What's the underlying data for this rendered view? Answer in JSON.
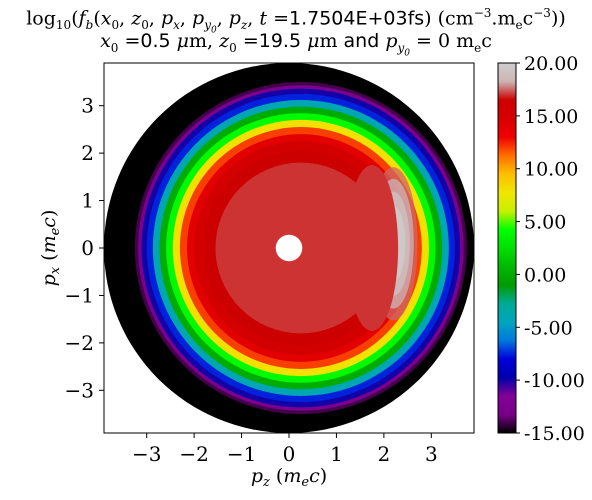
{
  "chart_data": {
    "type": "heatmap",
    "title_line1": "log10(fb(x0, z0, px, py0, pz, t =1.7504E+03fs) (cm−3.mec−3))",
    "title_line2": "x0 =0.5 μm, z0 =19.5 μm and py0 = 0 mec",
    "xlabel": "pz (mec)",
    "ylabel": "px (mec)",
    "xlim": [
      -3.9,
      3.9
    ],
    "ylim": [
      -3.9,
      3.9
    ],
    "x_ticks": [
      -3,
      -2,
      -1,
      0,
      1,
      2,
      3
    ],
    "y_ticks": [
      -3,
      -2,
      -1,
      0,
      1,
      2,
      3
    ],
    "x_tick_labels": [
      "−3",
      "−2",
      "−1",
      "0",
      "1",
      "2",
      "3"
    ],
    "y_tick_labels": [
      "−3",
      "−2",
      "−1",
      "0",
      "1",
      "2",
      "3"
    ],
    "colorbar": {
      "min": -15.0,
      "max": 20.0,
      "ticks": [
        20,
        15,
        10,
        5,
        0,
        -5,
        -10,
        -15
      ],
      "tick_labels": [
        "20.00",
        "15.00",
        "10.00",
        "5.00",
        "0.00",
        "-5.00",
        "-10.00",
        "-15.00"
      ],
      "colormap": "nipy_spectral"
    },
    "regions": {
      "domain_radius": 3.9,
      "distribution_center": [
        0.25,
        0
      ],
      "outer_edge_radius": 3.5,
      "core_level": 17,
      "background_color": "#000000",
      "inner_hole": {
        "center": [
          0,
          0
        ],
        "radius": 0.28
      },
      "peak": {
        "center": [
          2.2,
          0.3
        ],
        "level": 20
      }
    },
    "grid": false
  }
}
